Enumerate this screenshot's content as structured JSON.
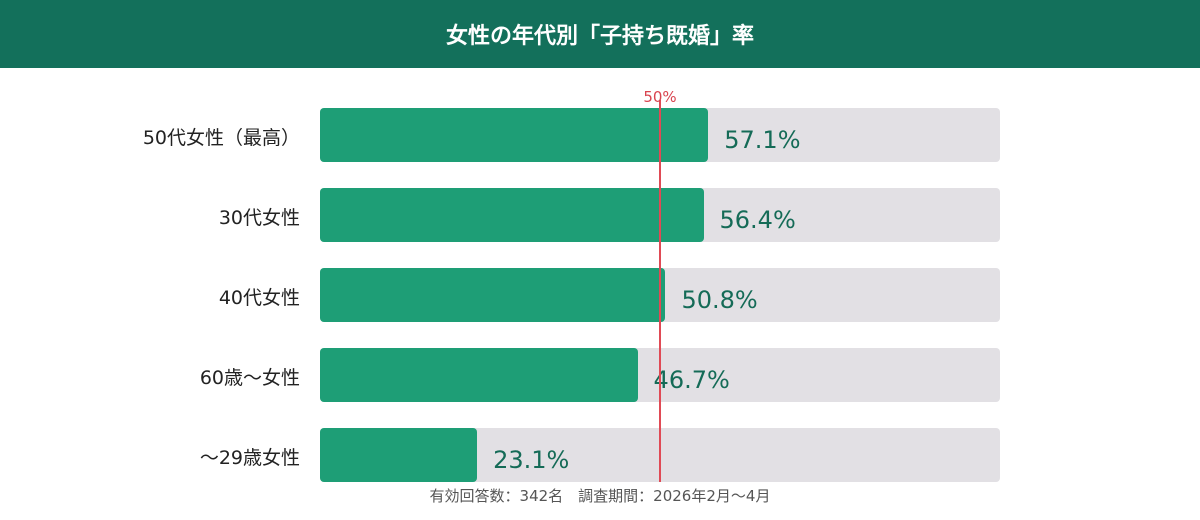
{
  "header": {
    "title": "女性の年代別「子持ち既婚」率"
  },
  "chart_data": {
    "type": "bar",
    "orientation": "horizontal",
    "title": "女性の年代別「子持ち既婚」率",
    "categories": [
      "50代女性（最高）",
      "30代女性",
      "40代女性",
      "60歳〜女性",
      "〜29歳女性"
    ],
    "values": [
      57.1,
      56.4,
      50.8,
      46.7,
      23.1
    ],
    "value_labels": [
      "57.1%",
      "56.4%",
      "50.8%",
      "46.7%",
      "23.1%"
    ],
    "xlim": [
      0,
      100
    ],
    "reference_line": {
      "value": 50,
      "label": "50%"
    },
    "colors": {
      "fill": "#1e9e76",
      "track": "#e2e0e4",
      "reference": "#e04a55",
      "label": "#156b57"
    }
  },
  "footer": {
    "text": "有効回答数：342名　調査期間：2026年2月〜4月"
  }
}
